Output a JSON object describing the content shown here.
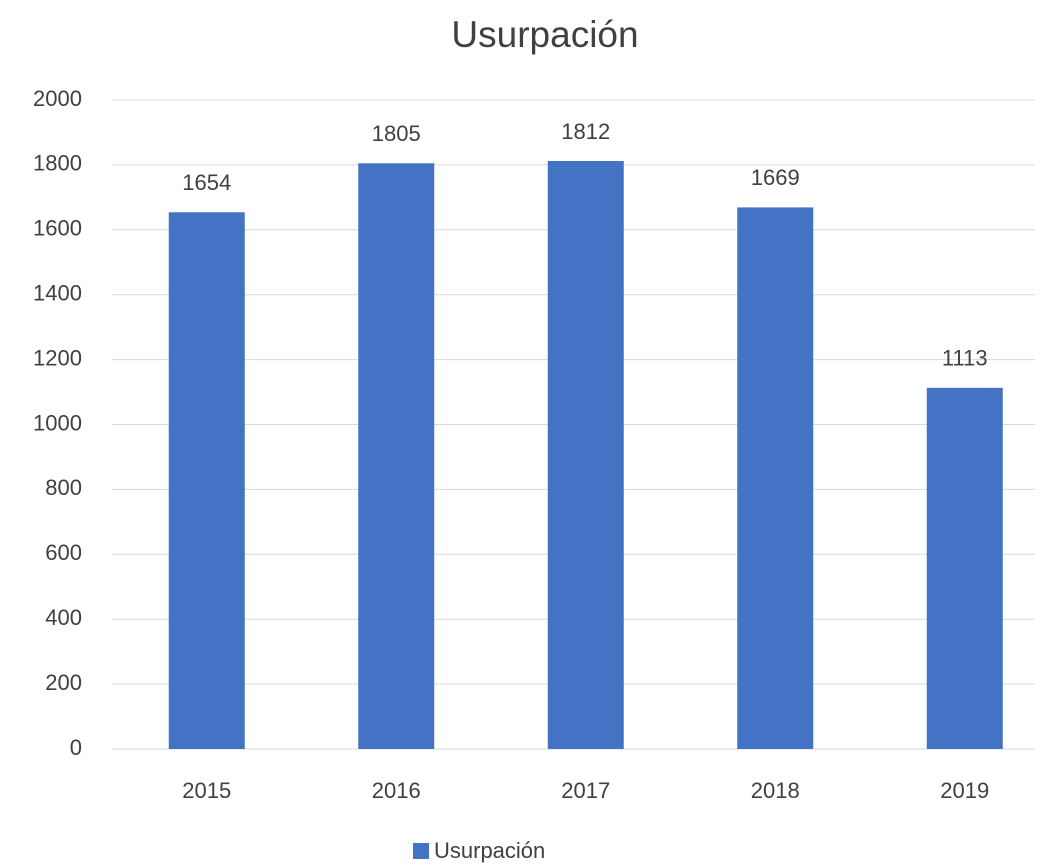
{
  "chart_data": {
    "type": "bar",
    "title": "Usurpación",
    "categories": [
      "2015",
      "2016",
      "2017",
      "2018",
      "2019"
    ],
    "series": [
      {
        "name": "Usurpación",
        "color": "#4472c4",
        "values": [
          1654,
          1805,
          1812,
          1669,
          1113
        ]
      }
    ],
    "ylim": [
      0,
      2000
    ],
    "yticks": [
      0,
      200,
      400,
      600,
      800,
      1000,
      1200,
      1400,
      1600,
      1800,
      2000
    ],
    "grid": true,
    "data_labels": true,
    "legend": "bottom"
  }
}
